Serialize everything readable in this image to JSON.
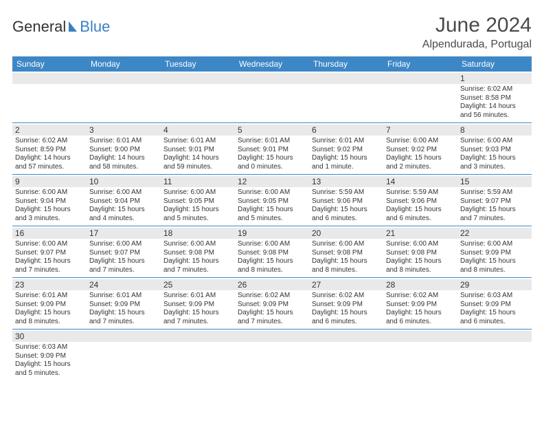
{
  "logo": {
    "text1": "General",
    "text2": "Blue"
  },
  "header": {
    "month_title": "June 2024",
    "location": "Alpendurada, Portugal"
  },
  "colors": {
    "header_bg": "#3d87c7",
    "daynum_bg": "#e9e9e9"
  },
  "day_names": [
    "Sunday",
    "Monday",
    "Tuesday",
    "Wednesday",
    "Thursday",
    "Friday",
    "Saturday"
  ],
  "weeks": [
    [
      null,
      null,
      null,
      null,
      null,
      null,
      {
        "n": "1",
        "sr": "Sunrise: 6:02 AM",
        "ss": "Sunset: 8:58 PM",
        "dl": "Daylight: 14 hours and 56 minutes."
      }
    ],
    [
      {
        "n": "2",
        "sr": "Sunrise: 6:02 AM",
        "ss": "Sunset: 8:59 PM",
        "dl": "Daylight: 14 hours and 57 minutes."
      },
      {
        "n": "3",
        "sr": "Sunrise: 6:01 AM",
        "ss": "Sunset: 9:00 PM",
        "dl": "Daylight: 14 hours and 58 minutes."
      },
      {
        "n": "4",
        "sr": "Sunrise: 6:01 AM",
        "ss": "Sunset: 9:01 PM",
        "dl": "Daylight: 14 hours and 59 minutes."
      },
      {
        "n": "5",
        "sr": "Sunrise: 6:01 AM",
        "ss": "Sunset: 9:01 PM",
        "dl": "Daylight: 15 hours and 0 minutes."
      },
      {
        "n": "6",
        "sr": "Sunrise: 6:01 AM",
        "ss": "Sunset: 9:02 PM",
        "dl": "Daylight: 15 hours and 1 minute."
      },
      {
        "n": "7",
        "sr": "Sunrise: 6:00 AM",
        "ss": "Sunset: 9:02 PM",
        "dl": "Daylight: 15 hours and 2 minutes."
      },
      {
        "n": "8",
        "sr": "Sunrise: 6:00 AM",
        "ss": "Sunset: 9:03 PM",
        "dl": "Daylight: 15 hours and 3 minutes."
      }
    ],
    [
      {
        "n": "9",
        "sr": "Sunrise: 6:00 AM",
        "ss": "Sunset: 9:04 PM",
        "dl": "Daylight: 15 hours and 3 minutes."
      },
      {
        "n": "10",
        "sr": "Sunrise: 6:00 AM",
        "ss": "Sunset: 9:04 PM",
        "dl": "Daylight: 15 hours and 4 minutes."
      },
      {
        "n": "11",
        "sr": "Sunrise: 6:00 AM",
        "ss": "Sunset: 9:05 PM",
        "dl": "Daylight: 15 hours and 5 minutes."
      },
      {
        "n": "12",
        "sr": "Sunrise: 6:00 AM",
        "ss": "Sunset: 9:05 PM",
        "dl": "Daylight: 15 hours and 5 minutes."
      },
      {
        "n": "13",
        "sr": "Sunrise: 5:59 AM",
        "ss": "Sunset: 9:06 PM",
        "dl": "Daylight: 15 hours and 6 minutes."
      },
      {
        "n": "14",
        "sr": "Sunrise: 5:59 AM",
        "ss": "Sunset: 9:06 PM",
        "dl": "Daylight: 15 hours and 6 minutes."
      },
      {
        "n": "15",
        "sr": "Sunrise: 5:59 AM",
        "ss": "Sunset: 9:07 PM",
        "dl": "Daylight: 15 hours and 7 minutes."
      }
    ],
    [
      {
        "n": "16",
        "sr": "Sunrise: 6:00 AM",
        "ss": "Sunset: 9:07 PM",
        "dl": "Daylight: 15 hours and 7 minutes."
      },
      {
        "n": "17",
        "sr": "Sunrise: 6:00 AM",
        "ss": "Sunset: 9:07 PM",
        "dl": "Daylight: 15 hours and 7 minutes."
      },
      {
        "n": "18",
        "sr": "Sunrise: 6:00 AM",
        "ss": "Sunset: 9:08 PM",
        "dl": "Daylight: 15 hours and 7 minutes."
      },
      {
        "n": "19",
        "sr": "Sunrise: 6:00 AM",
        "ss": "Sunset: 9:08 PM",
        "dl": "Daylight: 15 hours and 8 minutes."
      },
      {
        "n": "20",
        "sr": "Sunrise: 6:00 AM",
        "ss": "Sunset: 9:08 PM",
        "dl": "Daylight: 15 hours and 8 minutes."
      },
      {
        "n": "21",
        "sr": "Sunrise: 6:00 AM",
        "ss": "Sunset: 9:08 PM",
        "dl": "Daylight: 15 hours and 8 minutes."
      },
      {
        "n": "22",
        "sr": "Sunrise: 6:00 AM",
        "ss": "Sunset: 9:09 PM",
        "dl": "Daylight: 15 hours and 8 minutes."
      }
    ],
    [
      {
        "n": "23",
        "sr": "Sunrise: 6:01 AM",
        "ss": "Sunset: 9:09 PM",
        "dl": "Daylight: 15 hours and 8 minutes."
      },
      {
        "n": "24",
        "sr": "Sunrise: 6:01 AM",
        "ss": "Sunset: 9:09 PM",
        "dl": "Daylight: 15 hours and 7 minutes."
      },
      {
        "n": "25",
        "sr": "Sunrise: 6:01 AM",
        "ss": "Sunset: 9:09 PM",
        "dl": "Daylight: 15 hours and 7 minutes."
      },
      {
        "n": "26",
        "sr": "Sunrise: 6:02 AM",
        "ss": "Sunset: 9:09 PM",
        "dl": "Daylight: 15 hours and 7 minutes."
      },
      {
        "n": "27",
        "sr": "Sunrise: 6:02 AM",
        "ss": "Sunset: 9:09 PM",
        "dl": "Daylight: 15 hours and 6 minutes."
      },
      {
        "n": "28",
        "sr": "Sunrise: 6:02 AM",
        "ss": "Sunset: 9:09 PM",
        "dl": "Daylight: 15 hours and 6 minutes."
      },
      {
        "n": "29",
        "sr": "Sunrise: 6:03 AM",
        "ss": "Sunset: 9:09 PM",
        "dl": "Daylight: 15 hours and 6 minutes."
      }
    ],
    [
      {
        "n": "30",
        "sr": "Sunrise: 6:03 AM",
        "ss": "Sunset: 9:09 PM",
        "dl": "Daylight: 15 hours and 5 minutes."
      },
      null,
      null,
      null,
      null,
      null,
      null
    ]
  ]
}
